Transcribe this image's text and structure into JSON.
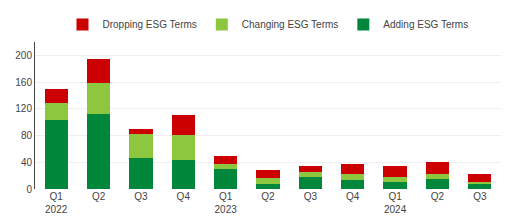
{
  "chart_data": {
    "type": "bar",
    "stacked": true,
    "categories": [
      "Q1\n2022",
      "Q2",
      "Q3",
      "Q4",
      "Q1\n2023",
      "Q2",
      "Q3",
      "Q4",
      "Q1\n2024",
      "Q2",
      "Q3"
    ],
    "series": [
      {
        "name": "Adding ESG Terms",
        "color": "#00873C",
        "values": [
          103,
          113,
          47,
          43,
          30,
          8,
          18,
          13,
          10,
          15,
          7
        ]
      },
      {
        "name": "Changing ESG Terms",
        "color": "#8DC63F",
        "values": [
          25,
          45,
          35,
          38,
          8,
          8,
          8,
          10,
          8,
          8,
          3
        ]
      },
      {
        "name": "Dropping ESG Terms",
        "color": "#CC0000",
        "values": [
          22,
          37,
          8,
          30,
          12,
          13,
          8,
          15,
          17,
          17,
          12
        ]
      }
    ],
    "ylim": [
      0,
      220
    ],
    "yticks": [
      0,
      40,
      80,
      120,
      160,
      200
    ],
    "grid": true,
    "legend": "top"
  }
}
